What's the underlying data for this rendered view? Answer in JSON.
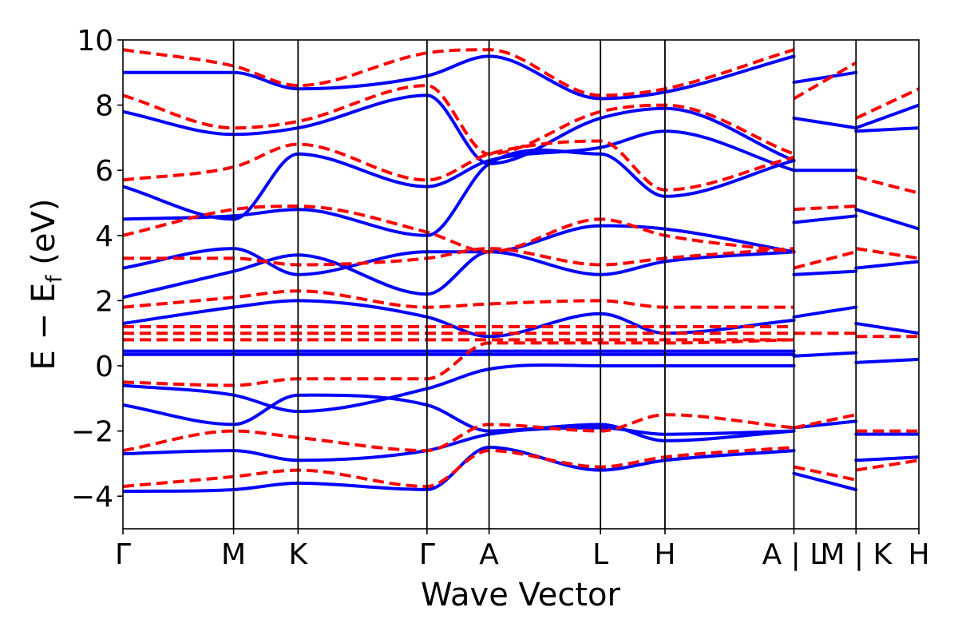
{
  "chart_data": {
    "type": "line",
    "xlabel": "Wave Vector",
    "ylabel": {
      "main": "E − E",
      "subscript": "f",
      "unit": " (eV)"
    },
    "ylim": [
      -5,
      10
    ],
    "xlim": [
      0,
      10
    ],
    "yticks": [
      -4,
      -2,
      0,
      2,
      4,
      6,
      8,
      10
    ],
    "ytick_labels": [
      "−4",
      "−2",
      "0",
      "2",
      "4",
      "6",
      "8",
      "10"
    ],
    "kpoints": [
      {
        "label": "Γ",
        "x": 0
      },
      {
        "label": "M",
        "x": 1.39
      },
      {
        "label": "K",
        "x": 2.2
      },
      {
        "label": "Γ",
        "x": 3.82
      },
      {
        "label": "A",
        "x": 4.6
      },
      {
        "label": "L",
        "x": 6.0
      },
      {
        "label": "H",
        "x": 6.81
      },
      {
        "label": "A | L",
        "x": 8.43
      },
      {
        "label": "M | K",
        "x": 9.21
      },
      {
        "label": "H",
        "x": 10
      }
    ],
    "grid": false,
    "legend": "none",
    "colors": {
      "series_blue": "#0000ff",
      "series_red": "#ff0000"
    },
    "series": [
      {
        "style": "solid",
        "color": "#0000ff",
        "x": [
          0,
          1.39,
          2.2,
          3.82,
          4.6,
          6.0,
          6.81,
          8.43
        ],
        "y": [
          -3.85,
          -3.8,
          -3.6,
          -3.8,
          -2.5,
          -3.2,
          -2.9,
          -2.6
        ]
      },
      {
        "style": "solid",
        "color": "#0000ff",
        "x": [
          0,
          1.39,
          2.2,
          3.82,
          4.6,
          6.0,
          6.81,
          8.43
        ],
        "y": [
          -2.7,
          -2.6,
          -2.9,
          -2.6,
          -2.1,
          -1.9,
          -2.1,
          -2.0
        ]
      },
      {
        "style": "solid",
        "color": "#0000ff",
        "x": [
          0,
          1.39,
          2.2,
          3.82,
          4.6,
          6.0,
          6.81,
          8.43
        ],
        "y": [
          -1.2,
          -1.8,
          -0.9,
          -1.2,
          -2.0,
          -1.8,
          -2.3,
          -2.0
        ]
      },
      {
        "style": "solid",
        "color": "#0000ff",
        "x": [
          0,
          1.39,
          2.2,
          3.82,
          4.6,
          6.0,
          6.81,
          8.43
        ],
        "y": [
          -0.6,
          -0.9,
          -1.4,
          -0.7,
          -0.1,
          0.0,
          0.0,
          0.0
        ]
      },
      {
        "style": "solid",
        "color": "#0000ff",
        "x": [
          0,
          1.39,
          2.2,
          3.82,
          4.6,
          6.0,
          6.81,
          8.43
        ],
        "y": [
          0.35,
          0.35,
          0.35,
          0.35,
          0.35,
          0.35,
          0.35,
          0.35
        ]
      },
      {
        "style": "solid",
        "color": "#0000ff",
        "x": [
          0,
          1.39,
          2.2,
          3.82,
          4.6,
          6.0,
          6.81,
          8.43
        ],
        "y": [
          0.45,
          0.45,
          0.45,
          0.45,
          0.45,
          0.45,
          0.45,
          0.45
        ]
      },
      {
        "style": "solid",
        "color": "#0000ff",
        "x": [
          0,
          1.39,
          2.2,
          3.82,
          4.6,
          6.0,
          6.81,
          8.43
        ],
        "y": [
          1.3,
          1.8,
          2.0,
          1.5,
          0.9,
          1.6,
          1.0,
          1.4
        ]
      },
      {
        "style": "solid",
        "color": "#0000ff",
        "x": [
          0,
          1.39,
          2.2,
          3.82,
          4.6,
          6.0,
          6.81,
          8.43
        ],
        "y": [
          2.1,
          2.9,
          3.4,
          2.2,
          3.5,
          2.8,
          3.2,
          3.5
        ]
      },
      {
        "style": "solid",
        "color": "#0000ff",
        "x": [
          0,
          1.39,
          2.2,
          3.82,
          4.6,
          6.0,
          6.81,
          8.43
        ],
        "y": [
          3.0,
          3.6,
          2.8,
          3.5,
          3.5,
          4.3,
          4.2,
          3.5
        ]
      },
      {
        "style": "solid",
        "color": "#0000ff",
        "x": [
          0,
          1.39,
          2.2,
          3.82,
          4.6,
          6.0,
          6.81,
          8.43
        ],
        "y": [
          4.5,
          4.6,
          4.8,
          4.0,
          6.2,
          6.5,
          5.2,
          6.3
        ]
      },
      {
        "style": "solid",
        "color": "#0000ff",
        "x": [
          0,
          1.39,
          2.2,
          3.82,
          4.6,
          6.0,
          6.81,
          8.43
        ],
        "y": [
          5.5,
          4.5,
          6.5,
          5.5,
          6.3,
          6.7,
          7.2,
          6.0
        ]
      },
      {
        "style": "solid",
        "color": "#0000ff",
        "x": [
          0,
          1.39,
          2.2,
          3.82,
          4.6,
          6.0,
          6.81,
          8.43
        ],
        "y": [
          7.8,
          7.1,
          7.3,
          8.3,
          6.2,
          7.6,
          7.9,
          6.3
        ]
      },
      {
        "style": "solid",
        "color": "#0000ff",
        "x": [
          0,
          1.39,
          2.2,
          3.82,
          4.6,
          6.0,
          6.81,
          8.43
        ],
        "y": [
          9.0,
          9.0,
          8.5,
          8.9,
          9.5,
          8.2,
          8.4,
          9.5
        ]
      },
      {
        "style": "dashed",
        "color": "#ff0000",
        "x": [
          0,
          1.39,
          2.2,
          3.82,
          4.6,
          6.0,
          6.81,
          8.43
        ],
        "y": [
          -3.7,
          -3.4,
          -3.2,
          -3.7,
          -2.6,
          -3.1,
          -2.8,
          -2.5
        ]
      },
      {
        "style": "dashed",
        "color": "#ff0000",
        "x": [
          0,
          1.39,
          2.2,
          3.82,
          4.6,
          6.0,
          6.81,
          8.43
        ],
        "y": [
          -2.6,
          -2.0,
          -2.2,
          -2.6,
          -1.8,
          -2.0,
          -1.5,
          -1.9
        ]
      },
      {
        "style": "dashed",
        "color": "#ff0000",
        "x": [
          0,
          1.39,
          2.2,
          3.82,
          4.6,
          6.0,
          6.81,
          8.43
        ],
        "y": [
          -0.5,
          -0.6,
          -0.4,
          -0.4,
          0.7,
          0.7,
          0.7,
          0.8
        ]
      },
      {
        "style": "dashed",
        "color": "#ff0000",
        "x": [
          0,
          1.39,
          2.2,
          3.82,
          4.6,
          6.0,
          6.81,
          8.43
        ],
        "y": [
          0.8,
          0.8,
          0.8,
          0.8,
          0.8,
          0.8,
          0.8,
          0.8
        ]
      },
      {
        "style": "dashed",
        "color": "#ff0000",
        "x": [
          0,
          1.39,
          2.2,
          3.82,
          4.6,
          6.0,
          6.81,
          8.43
        ],
        "y": [
          1.0,
          1.0,
          1.0,
          1.0,
          1.0,
          1.0,
          1.0,
          1.0
        ]
      },
      {
        "style": "dashed",
        "color": "#ff0000",
        "x": [
          0,
          1.39,
          2.2,
          3.82,
          4.6,
          6.0,
          6.81,
          8.43
        ],
        "y": [
          1.2,
          1.2,
          1.2,
          1.2,
          1.2,
          1.2,
          1.2,
          1.2
        ]
      },
      {
        "style": "dashed",
        "color": "#ff0000",
        "x": [
          0,
          1.39,
          2.2,
          3.82,
          4.6,
          6.0,
          6.81,
          8.43
        ],
        "y": [
          1.8,
          2.1,
          2.3,
          1.8,
          1.9,
          2.0,
          1.8,
          1.8
        ]
      },
      {
        "style": "dashed",
        "color": "#ff0000",
        "x": [
          0,
          1.39,
          2.2,
          3.82,
          4.6,
          6.0,
          6.81,
          8.43
        ],
        "y": [
          3.3,
          3.3,
          3.1,
          3.3,
          3.6,
          3.1,
          3.3,
          3.6
        ]
      },
      {
        "style": "dashed",
        "color": "#ff0000",
        "x": [
          0,
          1.39,
          2.2,
          3.82,
          4.6,
          6.0,
          6.81,
          8.43
        ],
        "y": [
          4.0,
          4.8,
          4.9,
          4.1,
          3.5,
          4.5,
          4.0,
          3.5
        ]
      },
      {
        "style": "dashed",
        "color": "#ff0000",
        "x": [
          0,
          1.39,
          2.2,
          3.82,
          4.6,
          6.0,
          6.81,
          8.43
        ],
        "y": [
          5.7,
          6.1,
          6.8,
          5.7,
          6.5,
          6.9,
          5.4,
          6.4
        ]
      },
      {
        "style": "dashed",
        "color": "#ff0000",
        "x": [
          0,
          1.39,
          2.2,
          3.82,
          4.6,
          6.0,
          6.81,
          8.43
        ],
        "y": [
          8.3,
          7.3,
          7.5,
          8.6,
          6.5,
          7.8,
          8.0,
          6.5
        ]
      },
      {
        "style": "dashed",
        "color": "#ff0000",
        "x": [
          0,
          1.39,
          2.2,
          3.82,
          4.6,
          6.0,
          6.81,
          8.43
        ],
        "y": [
          9.7,
          9.2,
          8.6,
          9.6,
          9.7,
          8.3,
          8.5,
          9.7
        ]
      },
      {
        "style": "solid",
        "color": "#0000ff",
        "x": [
          8.43,
          9.21
        ],
        "y": [
          -3.3,
          -3.8
        ]
      },
      {
        "style": "solid",
        "color": "#0000ff",
        "x": [
          8.43,
          9.21
        ],
        "y": [
          -1.9,
          -1.7
        ]
      },
      {
        "style": "solid",
        "color": "#0000ff",
        "x": [
          8.43,
          9.21
        ],
        "y": [
          0.3,
          0.4
        ]
      },
      {
        "style": "solid",
        "color": "#0000ff",
        "x": [
          8.43,
          9.21
        ],
        "y": [
          1.5,
          1.8
        ]
      },
      {
        "style": "solid",
        "color": "#0000ff",
        "x": [
          8.43,
          9.21
        ],
        "y": [
          2.8,
          2.9
        ]
      },
      {
        "style": "solid",
        "color": "#0000ff",
        "x": [
          8.43,
          9.21
        ],
        "y": [
          4.4,
          4.6
        ]
      },
      {
        "style": "solid",
        "color": "#0000ff",
        "x": [
          8.43,
          9.21
        ],
        "y": [
          6.0,
          6.0
        ]
      },
      {
        "style": "solid",
        "color": "#0000ff",
        "x": [
          8.43,
          9.21
        ],
        "y": [
          7.6,
          7.3
        ]
      },
      {
        "style": "solid",
        "color": "#0000ff",
        "x": [
          8.43,
          9.21
        ],
        "y": [
          8.7,
          9.0
        ]
      },
      {
        "style": "dashed",
        "color": "#ff0000",
        "x": [
          8.43,
          9.21
        ],
        "y": [
          -3.1,
          -3.5
        ]
      },
      {
        "style": "dashed",
        "color": "#ff0000",
        "x": [
          8.43,
          9.21
        ],
        "y": [
          -1.9,
          -1.5
        ]
      },
      {
        "style": "dashed",
        "color": "#ff0000",
        "x": [
          8.43,
          9.21
        ],
        "y": [
          1.0,
          1.0
        ]
      },
      {
        "style": "dashed",
        "color": "#ff0000",
        "x": [
          8.43,
          9.21
        ],
        "y": [
          3.0,
          3.5
        ]
      },
      {
        "style": "dashed",
        "color": "#ff0000",
        "x": [
          8.43,
          9.21
        ],
        "y": [
          4.8,
          4.9
        ]
      },
      {
        "style": "dashed",
        "color": "#ff0000",
        "x": [
          8.43,
          9.21
        ],
        "y": [
          8.2,
          9.3
        ]
      },
      {
        "style": "solid",
        "color": "#0000ff",
        "x": [
          9.21,
          10
        ],
        "y": [
          -2.9,
          -2.8
        ]
      },
      {
        "style": "solid",
        "color": "#0000ff",
        "x": [
          9.21,
          10
        ],
        "y": [
          -2.1,
          -2.1
        ]
      },
      {
        "style": "solid",
        "color": "#0000ff",
        "x": [
          9.21,
          10
        ],
        "y": [
          0.1,
          0.2
        ]
      },
      {
        "style": "solid",
        "color": "#0000ff",
        "x": [
          9.21,
          10
        ],
        "y": [
          1.3,
          1.0
        ]
      },
      {
        "style": "solid",
        "color": "#0000ff",
        "x": [
          9.21,
          10
        ],
        "y": [
          3.0,
          3.2
        ]
      },
      {
        "style": "solid",
        "color": "#0000ff",
        "x": [
          9.21,
          10
        ],
        "y": [
          4.8,
          4.2
        ]
      },
      {
        "style": "solid",
        "color": "#0000ff",
        "x": [
          9.21,
          10
        ],
        "y": [
          7.2,
          7.3
        ]
      },
      {
        "style": "solid",
        "color": "#0000ff",
        "x": [
          9.21,
          10
        ],
        "y": [
          7.3,
          8.0
        ]
      },
      {
        "style": "dashed",
        "color": "#ff0000",
        "x": [
          9.21,
          10
        ],
        "y": [
          -3.2,
          -2.9
        ]
      },
      {
        "style": "dashed",
        "color": "#ff0000",
        "x": [
          9.21,
          10
        ],
        "y": [
          -2.0,
          -2.0
        ]
      },
      {
        "style": "dashed",
        "color": "#ff0000",
        "x": [
          9.21,
          10
        ],
        "y": [
          0.9,
          0.9
        ]
      },
      {
        "style": "dashed",
        "color": "#ff0000",
        "x": [
          9.21,
          10
        ],
        "y": [
          3.6,
          3.3
        ]
      },
      {
        "style": "dashed",
        "color": "#ff0000",
        "x": [
          9.21,
          10
        ],
        "y": [
          5.8,
          5.3
        ]
      },
      {
        "style": "dashed",
        "color": "#ff0000",
        "x": [
          9.21,
          10
        ],
        "y": [
          7.6,
          8.5
        ]
      }
    ]
  }
}
